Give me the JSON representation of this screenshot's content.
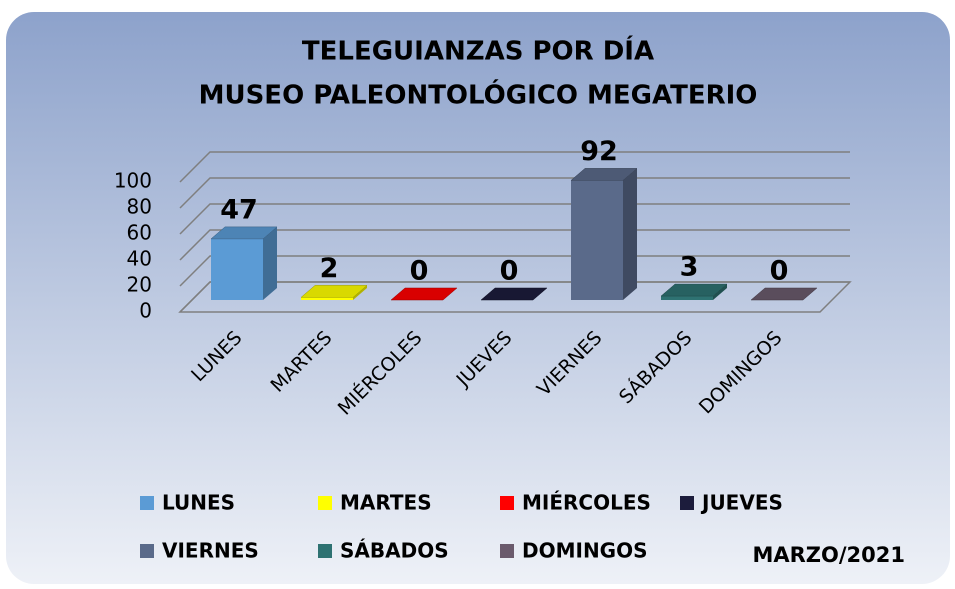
{
  "chart_data": {
    "type": "bar3d",
    "title": [
      "TELEGUIANZAS POR DÍA",
      "MUSEO PALEONTOLÓGICO MEGATERIO"
    ],
    "categories": [
      "LUNES",
      "MARTES",
      "MIÉRCOLES",
      "JUEVES",
      "VIERNES",
      "SÁBADOS",
      "DOMINGOS"
    ],
    "values": [
      47,
      2,
      0,
      0,
      92,
      3,
      0
    ],
    "colors": [
      "#5b9bd5",
      "#ffff00",
      "#ff0000",
      "#1c1c3c",
      "#5a6a8a",
      "#2e7272",
      "#6a5a6c"
    ],
    "ylim": [
      0,
      100
    ],
    "yticks": [
      0,
      20,
      40,
      60,
      80,
      100
    ],
    "grid": true,
    "annotation": "MARZO/2021"
  }
}
